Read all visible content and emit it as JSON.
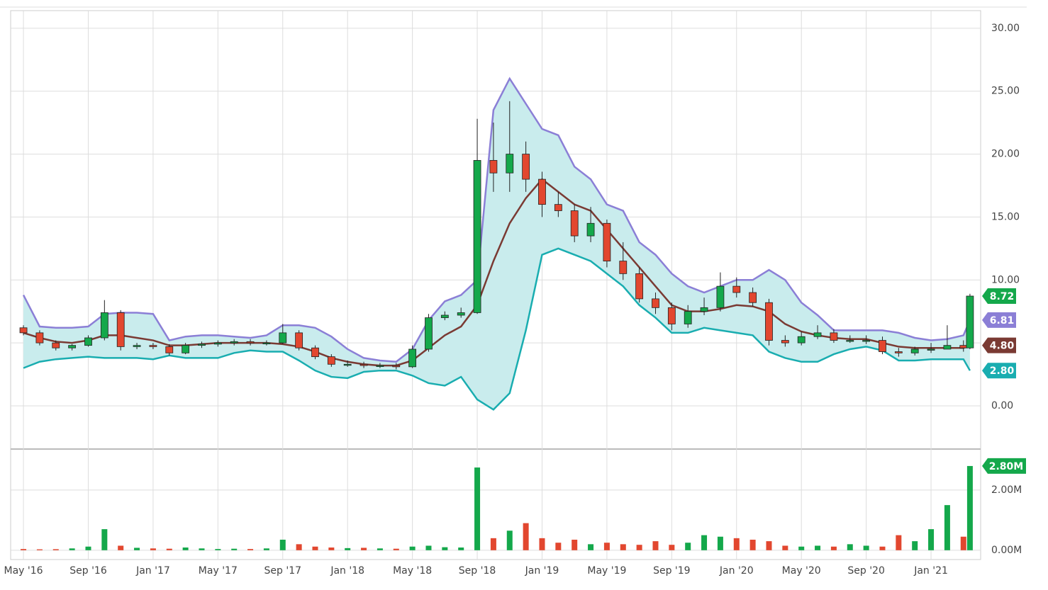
{
  "chart_data": {
    "type": "candlestick",
    "x": [
      4,
      5,
      6,
      7,
      8,
      9,
      10,
      11,
      12,
      13,
      14,
      15,
      16,
      17,
      18,
      19,
      20,
      21,
      22,
      23,
      24,
      25,
      26,
      27,
      28,
      29,
      30,
      31,
      32,
      33,
      34,
      35,
      36,
      37,
      38,
      39,
      40,
      41,
      42,
      43,
      44,
      45,
      46,
      47,
      48,
      49,
      50,
      51,
      52,
      53,
      54,
      55,
      56,
      57,
      58,
      59,
      60,
      61,
      62,
      62.4
    ],
    "xlim": [
      3.21,
      63.06
    ],
    "xticks": [
      {
        "value": 4,
        "label": "May '16"
      },
      {
        "value": 8,
        "label": "Sep '16"
      },
      {
        "value": 12,
        "label": "Jan '17"
      },
      {
        "value": 16,
        "label": "May '17"
      },
      {
        "value": 20,
        "label": "Sep '17"
      },
      {
        "value": 24,
        "label": "Jan '18"
      },
      {
        "value": 28,
        "label": "May '18"
      },
      {
        "value": 32,
        "label": "Sep '18"
      },
      {
        "value": 36,
        "label": "Jan '19"
      },
      {
        "value": 40,
        "label": "May '19"
      },
      {
        "value": 44,
        "label": "Sep '19"
      },
      {
        "value": 48,
        "label": "Jan '20"
      },
      {
        "value": 52,
        "label": "May '20"
      },
      {
        "value": 56,
        "label": "Sep '20"
      },
      {
        "value": 60,
        "label": "Jan '21"
      }
    ],
    "ylim": [
      -3.38,
      31.4
    ],
    "yticks": [
      {
        "value": 0,
        "label": "0.00"
      },
      {
        "value": 5,
        "label": "5.00"
      },
      {
        "value": 10,
        "label": "10.00"
      },
      {
        "value": 15,
        "label": "15.00"
      },
      {
        "value": 20,
        "label": "20.00"
      },
      {
        "value": 25,
        "label": "25.00"
      },
      {
        "value": 30,
        "label": "30.00"
      }
    ],
    "grid": true,
    "up_color": "#14a84b",
    "down_color": "#e2472f",
    "open": [
      6.2,
      5.8,
      5.0,
      4.6,
      4.8,
      5.4,
      7.4,
      4.7,
      4.8,
      4.7,
      4.2,
      4.8,
      4.9,
      5.0,
      5.1,
      5.0,
      5.0,
      5.8,
      4.6,
      3.9,
      3.3,
      3.3,
      3.2,
      3.2,
      3.1,
      4.5,
      7.0,
      7.2,
      7.4,
      19.5,
      18.5,
      20.0,
      18.0,
      16.0,
      15.5,
      13.5,
      14.5,
      11.5,
      10.5,
      8.5,
      7.8,
      6.5,
      7.5,
      7.8,
      9.5,
      9.0,
      8.2,
      5.2,
      5.0,
      5.5,
      5.8,
      5.2,
      5.2,
      5.2,
      4.3,
      4.2,
      4.5,
      4.5,
      4.8,
      4.6
    ],
    "high": [
      6.4,
      6.0,
      5.2,
      4.9,
      5.6,
      8.4,
      7.6,
      5.0,
      5.0,
      4.9,
      5.0,
      5.1,
      5.2,
      5.3,
      5.3,
      5.2,
      6.5,
      6.0,
      4.8,
      4.1,
      3.6,
      3.5,
      3.4,
      3.4,
      4.8,
      7.3,
      7.5,
      7.8,
      22.8,
      22.5,
      24.2,
      21.0,
      18.6,
      17.0,
      16.0,
      15.8,
      14.8,
      13.0,
      11.0,
      9.0,
      8.2,
      8.0,
      8.6,
      10.6,
      10.2,
      9.4,
      8.5,
      5.6,
      5.9,
      6.4,
      6.1,
      5.6,
      5.6,
      5.5,
      4.6,
      4.7,
      5.0,
      6.4,
      5.2,
      8.9
    ],
    "low": [
      5.6,
      4.8,
      4.4,
      4.4,
      4.7,
      5.2,
      4.4,
      4.5,
      4.5,
      4.0,
      4.1,
      4.6,
      4.7,
      4.8,
      4.8,
      4.8,
      4.9,
      4.4,
      3.7,
      3.1,
      3.1,
      3.0,
      3.0,
      2.9,
      3.0,
      4.3,
      6.8,
      7.0,
      7.3,
      17.0,
      17.0,
      17.0,
      15.0,
      15.0,
      13.0,
      13.0,
      11.0,
      10.0,
      8.2,
      7.3,
      6.0,
      6.2,
      7.2,
      7.5,
      8.6,
      7.9,
      4.8,
      4.7,
      4.8,
      5.3,
      5.0,
      5.0,
      4.9,
      4.1,
      3.9,
      4.0,
      4.2,
      4.5,
      4.3,
      4.5
    ],
    "close": [
      5.8,
      5.0,
      4.6,
      4.8,
      5.4,
      7.4,
      4.7,
      4.8,
      4.7,
      4.2,
      4.8,
      4.9,
      5.0,
      5.1,
      5.0,
      5.0,
      5.8,
      4.6,
      3.9,
      3.3,
      3.3,
      3.2,
      3.2,
      3.1,
      4.5,
      7.0,
      7.2,
      7.4,
      19.5,
      18.5,
      20.0,
      18.0,
      16.0,
      15.5,
      13.5,
      14.5,
      11.5,
      10.5,
      8.5,
      7.8,
      6.5,
      7.5,
      7.8,
      9.5,
      9.0,
      8.2,
      5.2,
      5.0,
      5.5,
      5.8,
      5.2,
      5.2,
      5.2,
      4.3,
      4.2,
      4.5,
      4.5,
      4.8,
      4.6,
      8.72
    ],
    "close_label": "8.72",
    "band_fill": "#c9eced",
    "series": [
      {
        "color": "#8b7fd6",
        "last_label": "6.81",
        "values": [
          8.8,
          6.3,
          6.2,
          6.2,
          6.3,
          7.3,
          7.4,
          7.4,
          7.3,
          5.2,
          5.5,
          5.6,
          5.6,
          5.5,
          5.4,
          5.6,
          6.4,
          6.4,
          6.2,
          5.5,
          4.5,
          3.8,
          3.6,
          3.5,
          4.5,
          6.8,
          8.3,
          8.8,
          10.0,
          23.5,
          26.0,
          24.0,
          22.0,
          21.5,
          19.0,
          18.0,
          16.0,
          15.5,
          13.0,
          12.0,
          10.5,
          9.5,
          9.0,
          9.5,
          10.0,
          10.0,
          10.8,
          10.0,
          8.2,
          7.2,
          6.0,
          6.0,
          6.0,
          6.0,
          5.8,
          5.4,
          5.2,
          5.3,
          5.6,
          6.81
        ]
      },
      {
        "color": "#7a3a33",
        "last_label": "4.80",
        "values": [
          5.8,
          5.4,
          5.1,
          5.0,
          5.2,
          5.6,
          5.6,
          5.4,
          5.2,
          4.8,
          4.8,
          4.9,
          5.0,
          5.0,
          5.0,
          5.0,
          4.9,
          4.7,
          4.3,
          3.8,
          3.5,
          3.3,
          3.2,
          3.2,
          3.6,
          4.6,
          5.6,
          6.3,
          8.0,
          11.5,
          14.5,
          16.5,
          18.0,
          17.0,
          16.0,
          15.5,
          14.0,
          12.5,
          11.0,
          9.5,
          8.0,
          7.5,
          7.5,
          7.7,
          8.0,
          7.9,
          7.5,
          6.5,
          5.9,
          5.6,
          5.4,
          5.3,
          5.3,
          5.0,
          4.7,
          4.6,
          4.6,
          4.6,
          4.6,
          4.8
        ]
      },
      {
        "color": "#19adb0",
        "last_label": "2.80",
        "values": [
          3.0,
          3.5,
          3.7,
          3.8,
          3.9,
          3.8,
          3.8,
          3.8,
          3.7,
          4.0,
          3.8,
          3.8,
          3.8,
          4.2,
          4.4,
          4.3,
          4.3,
          3.6,
          2.8,
          2.3,
          2.2,
          2.7,
          2.8,
          2.8,
          2.4,
          1.8,
          1.6,
          2.3,
          0.5,
          -0.3,
          1.0,
          6.0,
          12.0,
          12.5,
          12.0,
          11.5,
          10.5,
          9.5,
          8.0,
          7.0,
          5.8,
          5.8,
          6.2,
          6.0,
          5.8,
          5.6,
          4.3,
          3.8,
          3.5,
          3.5,
          4.1,
          4.5,
          4.7,
          4.4,
          3.6,
          3.6,
          3.7,
          3.7,
          3.7,
          2.8
        ]
      }
    ],
    "volume": {
      "values": [
        40000,
        30000,
        35000,
        60000,
        120000,
        700000,
        150000,
        80000,
        60000,
        50000,
        90000,
        60000,
        40000,
        50000,
        40000,
        60000,
        350000,
        200000,
        120000,
        90000,
        70000,
        80000,
        60000,
        50000,
        120000,
        150000,
        100000,
        90000,
        2750000,
        400000,
        650000,
        900000,
        400000,
        250000,
        350000,
        200000,
        250000,
        200000,
        180000,
        300000,
        180000,
        250000,
        500000,
        450000,
        400000,
        350000,
        300000,
        150000,
        120000,
        150000,
        120000,
        200000,
        150000,
        120000,
        500000,
        300000,
        700000,
        1500000,
        450000,
        2800000
      ],
      "ylim": [
        -310000,
        3340000
      ],
      "yticks": [
        {
          "value": 0,
          "label": "0.00M"
        },
        {
          "value": 2000000,
          "label": "2.00M"
        }
      ],
      "last_label": "2.80M"
    }
  }
}
